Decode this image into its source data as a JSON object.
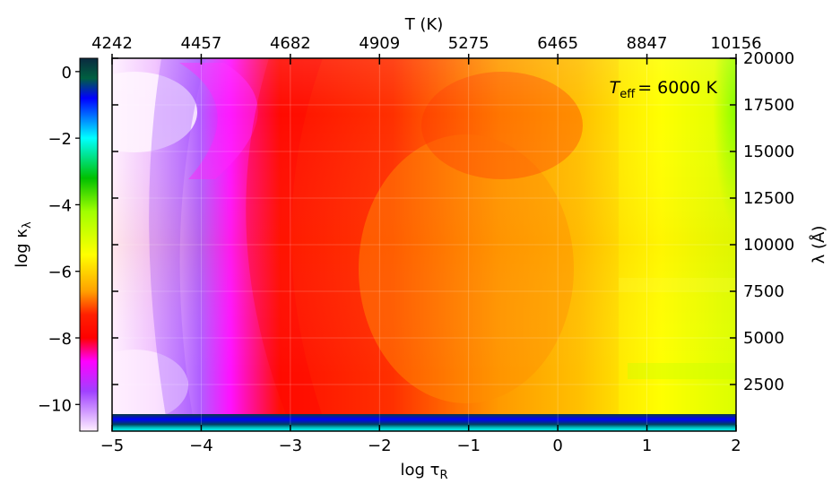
{
  "chart_data": {
    "type": "heatmap",
    "annotation": {
      "prefix": "T",
      "subscript": "eff",
      "value": "= 6000 K"
    },
    "bottom_axis": {
      "label": "log τ",
      "label_subscript": "R",
      "range": [
        -5,
        2
      ],
      "ticks": [
        -5,
        -4,
        -3,
        -2,
        -1,
        0,
        1,
        2
      ],
      "tick_labels": [
        "−5",
        "−4",
        "−3",
        "−2",
        "−1",
        "0",
        "1",
        "2"
      ]
    },
    "top_axis": {
      "label": "T (K)",
      "tick_positions_logtau": [
        -5,
        -4,
        -3,
        -2,
        -1,
        0,
        1,
        2
      ],
      "tick_labels": [
        "4242",
        "4457",
        "4682",
        "4909",
        "5275",
        "6465",
        "8847",
        "10156"
      ]
    },
    "right_axis": {
      "label": "λ (Å)",
      "range": [
        0,
        20000
      ],
      "ticks": [
        2500,
        5000,
        7500,
        10000,
        12500,
        15000,
        17500,
        20000
      ],
      "tick_labels": [
        "2500",
        "5000",
        "7500",
        "10000",
        "12500",
        "15000",
        "17500",
        "20000"
      ]
    },
    "colorbar": {
      "label": "log κ",
      "label_subscript": "λ",
      "range": [
        -10.8,
        0.4
      ],
      "ticks": [
        0,
        -2,
        -4,
        -6,
        -8,
        -10
      ],
      "tick_labels": [
        "0",
        "−2",
        "−4",
        "−6",
        "−8",
        "−10"
      ],
      "colormap_stops": [
        {
          "value": 0.4,
          "color": "#0a2a40"
        },
        {
          "value": -0.2,
          "color": "#006040"
        },
        {
          "value": -0.8,
          "color": "#0000ff"
        },
        {
          "value": -2.0,
          "color": "#00ffff"
        },
        {
          "value": -3.2,
          "color": "#00c000"
        },
        {
          "value": -4.2,
          "color": "#a0ff00"
        },
        {
          "value": -5.5,
          "color": "#ffff00"
        },
        {
          "value": -6.6,
          "color": "#ffa000"
        },
        {
          "value": -7.3,
          "color": "#ff2000"
        },
        {
          "value": -8.0,
          "color": "#ff0000"
        },
        {
          "value": -8.7,
          "color": "#ff00ff"
        },
        {
          "value": -9.6,
          "color": "#a040ff"
        },
        {
          "value": -10.8,
          "color": "#fff0ff"
        }
      ]
    },
    "grid": true
  }
}
